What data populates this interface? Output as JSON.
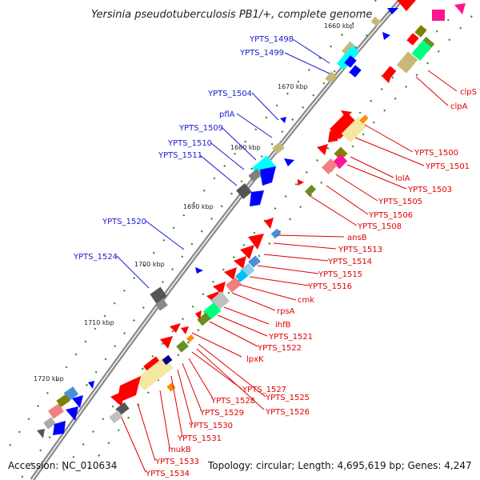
{
  "title": "Yersinia pseudotuberculosis PB1/+, complete genome",
  "footer": {
    "accession": "Accession: NC_010634",
    "summary": "Topology: circular; Length: 4,695,619 bp; Genes: 4,247"
  },
  "colors": {
    "backbone": "#8a8a8a",
    "left_labels": "#1a1ad0",
    "right_labels": "#e00000",
    "tick_marks": "#2b8a2b",
    "legend_swatches": [
      "#ff0000",
      "#ff1493",
      "#f5e6a0",
      "#00ffff",
      "#c0c0c0",
      "#808000",
      "#00ff7f",
      "#ff8c00",
      "#0000ff",
      "#6b8e23"
    ]
  },
  "ticks": [
    "1660 kbp",
    "1670 kbp",
    "1680 kbp",
    "1690 kbp",
    "1700 kbp",
    "1710 kbp",
    "1720 kbp"
  ],
  "left_labels": [
    "YPTS_1498",
    "YPTS_1499",
    "YPTS_1504",
    "pflA",
    "YPTS_1509",
    "YPTS_1510",
    "YPTS_1511",
    "YPTS_1520",
    "YPTS_1524"
  ],
  "right_labels": [
    "clpS",
    "clpA",
    "YPTS_1500",
    "YPTS_1501",
    "lolA",
    "YPTS_1503",
    "YPTS_1505",
    "YPTS_1506",
    "YPTS_1508",
    "ansB",
    "YPTS_1513",
    "YPTS_1514",
    "YPTS_1515",
    "YPTS_1516",
    "cmk",
    "rpsA",
    "ihfB",
    "YPTS_1521",
    "YPTS_1522",
    "lpxK",
    "YPTS_1525",
    "YPTS_1526",
    "YPTS_1527",
    "YPTS_1528",
    "YPTS_1529",
    "YPTS_1530",
    "YPTS_1531",
    "mukB",
    "YPTS_1533",
    "YPTS_1534"
  ]
}
